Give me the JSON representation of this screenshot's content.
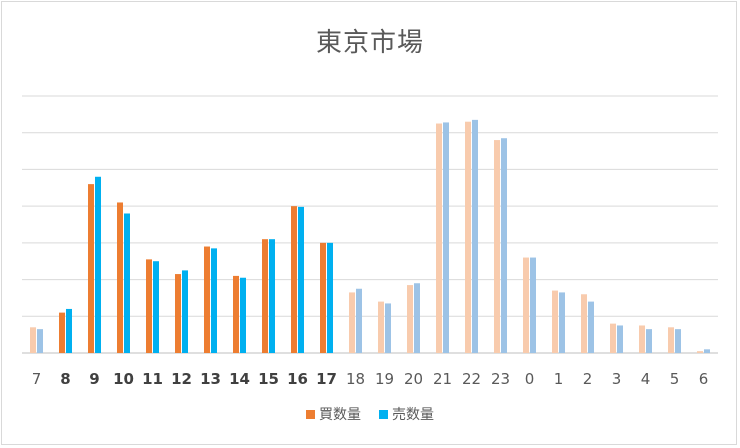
{
  "chart_data": {
    "type": "bar",
    "title": "東京市場",
    "categories": [
      "7",
      "8",
      "9",
      "10",
      "11",
      "12",
      "13",
      "14",
      "15",
      "16",
      "17",
      "18",
      "19",
      "20",
      "21",
      "22",
      "23",
      "0",
      "1",
      "2",
      "3",
      "4",
      "5",
      "6"
    ],
    "bold_categories": [
      "8",
      "9",
      "10",
      "11",
      "12",
      "13",
      "14",
      "15",
      "16",
      "17"
    ],
    "series": [
      {
        "name": "買数量",
        "color": "#ED7D31",
        "faded_color": "#F8CBAD",
        "values": [
          0.7,
          1.1,
          4.6,
          4.1,
          2.55,
          2.15,
          2.9,
          2.1,
          3.1,
          4.0,
          3.0,
          1.65,
          1.4,
          1.85,
          6.25,
          6.3,
          5.8,
          2.6,
          1.7,
          1.6,
          0.8,
          0.75,
          0.7,
          0.05
        ]
      },
      {
        "name": "売数量",
        "color": "#00B0F0",
        "faded_color": "#9DC3E6",
        "values": [
          0.65,
          1.2,
          4.8,
          3.8,
          2.5,
          2.25,
          2.85,
          2.05,
          3.1,
          3.98,
          3.0,
          1.75,
          1.35,
          1.9,
          6.28,
          6.35,
          5.85,
          2.6,
          1.65,
          1.4,
          0.75,
          0.65,
          0.65,
          0.1
        ]
      }
    ],
    "ylim": [
      0,
      7
    ],
    "grid": true,
    "legend_position": "bottom"
  }
}
